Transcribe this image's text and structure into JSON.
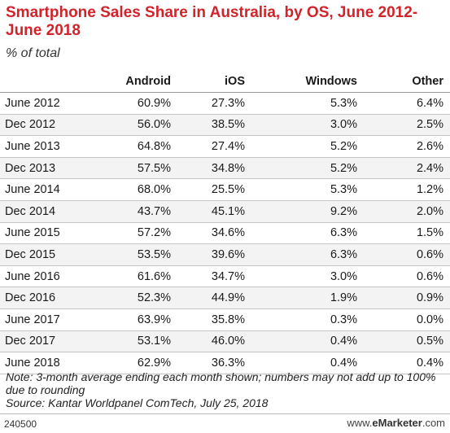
{
  "title": "Smartphone Sales Share in Australia, by OS, June 2012-June 2018",
  "subtitle": "% of total",
  "note": "Note: 3-month average ending each month shown; numbers may not add up to 100% due to rounding",
  "source": "Source: Kantar Worldpanel ComTech, July 25, 2018",
  "footer": {
    "id": "240500",
    "brand_prefix": "www.",
    "brand_name": "eMarketer",
    "brand_suffix": ".com"
  },
  "chart_data": {
    "type": "table",
    "title": "Smartphone Sales Share in Australia, by OS, June 2012-June 2018",
    "subtitle": "% of total",
    "columns": [
      "",
      "Android",
      "iOS",
      "Windows",
      "Other"
    ],
    "rows": [
      [
        "June 2012",
        "60.9%",
        "27.3%",
        "5.3%",
        "6.4%"
      ],
      [
        "Dec 2012",
        "56.0%",
        "38.5%",
        "3.0%",
        "2.5%"
      ],
      [
        "June 2013",
        "64.8%",
        "27.4%",
        "5.2%",
        "2.6%"
      ],
      [
        "Dec 2013",
        "57.5%",
        "34.8%",
        "5.2%",
        "2.4%"
      ],
      [
        "June 2014",
        "68.0%",
        "25.5%",
        "5.3%",
        "1.2%"
      ],
      [
        "Dec 2014",
        "43.7%",
        "45.1%",
        "9.2%",
        "2.0%"
      ],
      [
        "June 2015",
        "57.2%",
        "34.6%",
        "6.3%",
        "1.5%"
      ],
      [
        "Dec 2015",
        "53.5%",
        "39.6%",
        "6.3%",
        "0.6%"
      ],
      [
        "June 2016",
        "61.6%",
        "34.7%",
        "3.0%",
        "0.6%"
      ],
      [
        "Dec 2016",
        "52.3%",
        "44.9%",
        "1.9%",
        "0.9%"
      ],
      [
        "June 2017",
        "63.9%",
        "35.8%",
        "0.3%",
        "0.0%"
      ],
      [
        "Dec 2017",
        "53.1%",
        "46.0%",
        "0.4%",
        "0.5%"
      ],
      [
        "June 2018",
        "62.9%",
        "36.3%",
        "0.4%",
        "0.4%"
      ]
    ]
  }
}
